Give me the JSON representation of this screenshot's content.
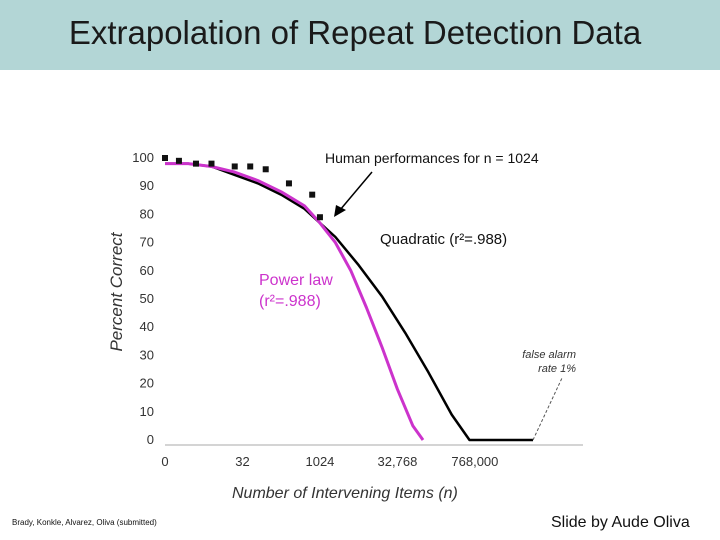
{
  "slide": {
    "title": "Extrapolation of Repeat Detection Data",
    "citation": "Brady, Konkle, Alvarez, Oliva (submitted)",
    "credit": "Slide by Aude Oliva"
  },
  "annotations": {
    "human": "Human performances for n = 1024",
    "quadratic": "Quadratic (r²=.988)",
    "power_line1": "Power law",
    "power_line2": "(r²=.988)",
    "false_alarm_line1": "false alarm",
    "false_alarm_line2": "rate 1%"
  },
  "colors": {
    "title_bar": "#b3d6d6",
    "quadratic": "#000000",
    "power_law": "#cc33cc",
    "markers": "#111111"
  },
  "chart_data": {
    "type": "line",
    "xlabel": "Number of Intervening Items (n)",
    "ylabel": "Percent Correct",
    "ylim": [
      0,
      100
    ],
    "yticks": [
      0,
      10,
      20,
      30,
      40,
      50,
      60,
      70,
      80,
      90,
      100
    ],
    "x_tick_labels": [
      "0",
      "32",
      "1024",
      "32,768",
      "768,000"
    ],
    "x_tick_positions": [
      0,
      1,
      2,
      3,
      4
    ],
    "series": [
      {
        "name": "Quadratic (r²=.988)",
        "style": "line",
        "color": "#000000",
        "x": [
          0,
          0.3,
          0.6,
          0.9,
          1.2,
          1.5,
          1.8,
          2.0,
          2.2,
          2.5,
          2.8,
          3.1,
          3.4,
          3.7,
          3.93,
          4.75
        ],
        "y": [
          98,
          98,
          97,
          94,
          91,
          87,
          82,
          77,
          72,
          62,
          51,
          38,
          24,
          9,
          0,
          0
        ]
      },
      {
        "name": "Power law (r²=.988)",
        "style": "line",
        "color": "#cc33cc",
        "x": [
          0,
          0.3,
          0.6,
          0.9,
          1.2,
          1.5,
          1.8,
          2.0,
          2.2,
          2.4,
          2.6,
          2.8,
          3.0,
          3.2,
          3.33
        ],
        "y": [
          98,
          98,
          97,
          95,
          92,
          88,
          83,
          77,
          70,
          60,
          47,
          33,
          18,
          5,
          0
        ]
      },
      {
        "name": "Human performances for n = 1024",
        "style": "markers",
        "color": "#111111",
        "x": [
          0,
          0.18,
          0.4,
          0.6,
          0.9,
          1.1,
          1.3,
          1.6,
          1.9,
          2.0
        ],
        "y": [
          100,
          99,
          98,
          98,
          97,
          97,
          96,
          91,
          87,
          79
        ]
      }
    ]
  }
}
